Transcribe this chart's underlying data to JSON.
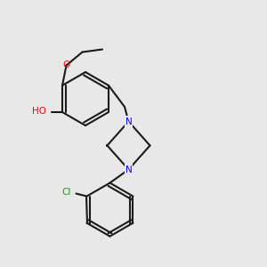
{
  "background_color": "#e8e8e8",
  "figsize": [
    3.0,
    3.0
  ],
  "dpi": 100,
  "bond_color": "#1a1a1a",
  "bond_lw": 1.5,
  "atom_colors": {
    "O": "#ff0000",
    "N": "#0000ff",
    "Cl": "#00aa00",
    "H": "#888888",
    "C": "#1a1a1a"
  }
}
